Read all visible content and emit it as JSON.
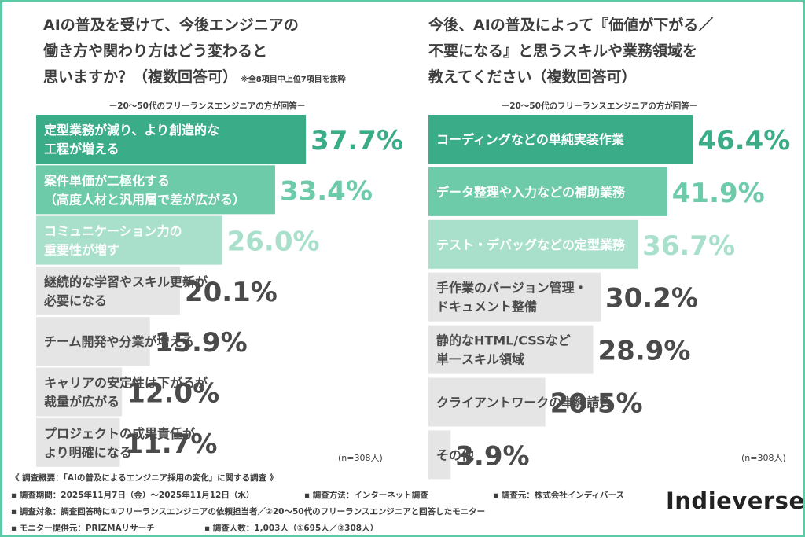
{
  "chart_data": [
    {
      "type": "bar",
      "title_lines": [
        "AIの普及を受けて、今後エンジニアの",
        "働き方や関わり方はどう変わると",
        "思いますか？（複数回答可）"
      ],
      "title_note": "※全8項目中上位7項目を抜粋",
      "subtitle": "ー20～50代のフリーランスエンジニアの方が回答ー",
      "categories": [
        [
          "定型業務が減り、より創造的な",
          "工程が増える"
        ],
        [
          "案件単価が二極化する",
          "（高度人材と汎用層で差が広がる）"
        ],
        [
          "コミュニケーション力の",
          "重要性が増す"
        ],
        [
          "継続的な学習やスキル更新が",
          "必要になる"
        ],
        [
          "チーム開発や分業が増える"
        ],
        [
          "キャリアの安定性は下がるが",
          "裁量が広がる"
        ],
        [
          "プロジェクトの成果責任が",
          "より明確になる"
        ]
      ],
      "values": [
        37.7,
        33.4,
        26.0,
        20.1,
        15.9,
        12.0,
        11.7
      ],
      "value_labels": [
        "37.7%",
        "33.4%",
        "26.0%",
        "20.1%",
        "15.9%",
        "12.0%",
        "11.7%"
      ],
      "n_note": "(n=308人)"
    },
    {
      "type": "bar",
      "title_lines": [
        "今後、AIの普及によって『価値が下がる／",
        "不要になる』と思うスキルや業務領域を",
        "教えてください（複数回答可）"
      ],
      "subtitle": "ー20～50代のフリーランスエンジニアの方が回答ー",
      "categories": [
        [
          "コーディングなどの単純実装作業"
        ],
        [
          "データ整理や入力などの補助業務"
        ],
        [
          "テスト・デバッグなどの定型業務"
        ],
        [
          "手作業のバージョン管理・",
          "ドキュメント整備"
        ],
        [
          "静的なHTML/CSSなど",
          "単一スキル領域"
        ],
        [
          "クライアントワークの単純請負"
        ],
        [
          "その他"
        ]
      ],
      "values": [
        46.4,
        41.9,
        36.7,
        30.2,
        28.9,
        20.5,
        3.9
      ],
      "value_labels": [
        "46.4%",
        "41.9%",
        "36.7%",
        "30.2%",
        "28.9%",
        "20.5%",
        "3.9%"
      ],
      "n_note": "(n=308人)"
    }
  ],
  "colors": {
    "frame": "#5cc9a7",
    "bar_1": "#3aac88",
    "bar_2": "#6dcbaa",
    "bar_3": "#a8e0cb",
    "bar_gray": "#e5e5e5",
    "text_dark": "#4a4a4a"
  },
  "footer": {
    "line1": "《 調査概要：「AIの普及によるエンジニア採用の変化」に関する調査 》",
    "period": "▪ 調査期間：2025年11月7日（金）～2025年11月12日（水）",
    "method": "▪ 調査方法：インターネット調査",
    "source": "▪ 調査元：株式会社インディバース",
    "target": "▪ 調査対象：調査回答時に①フリーランスエンジニアの依頼担当者／②20～50代のフリーランスエンジニアと回答したモニター",
    "provider": "▪ モニター提供元：PRIZMAリサーチ",
    "count": "▪ 調査人数：1,003人（①695人／②308人）"
  },
  "logo": "Indieverse"
}
